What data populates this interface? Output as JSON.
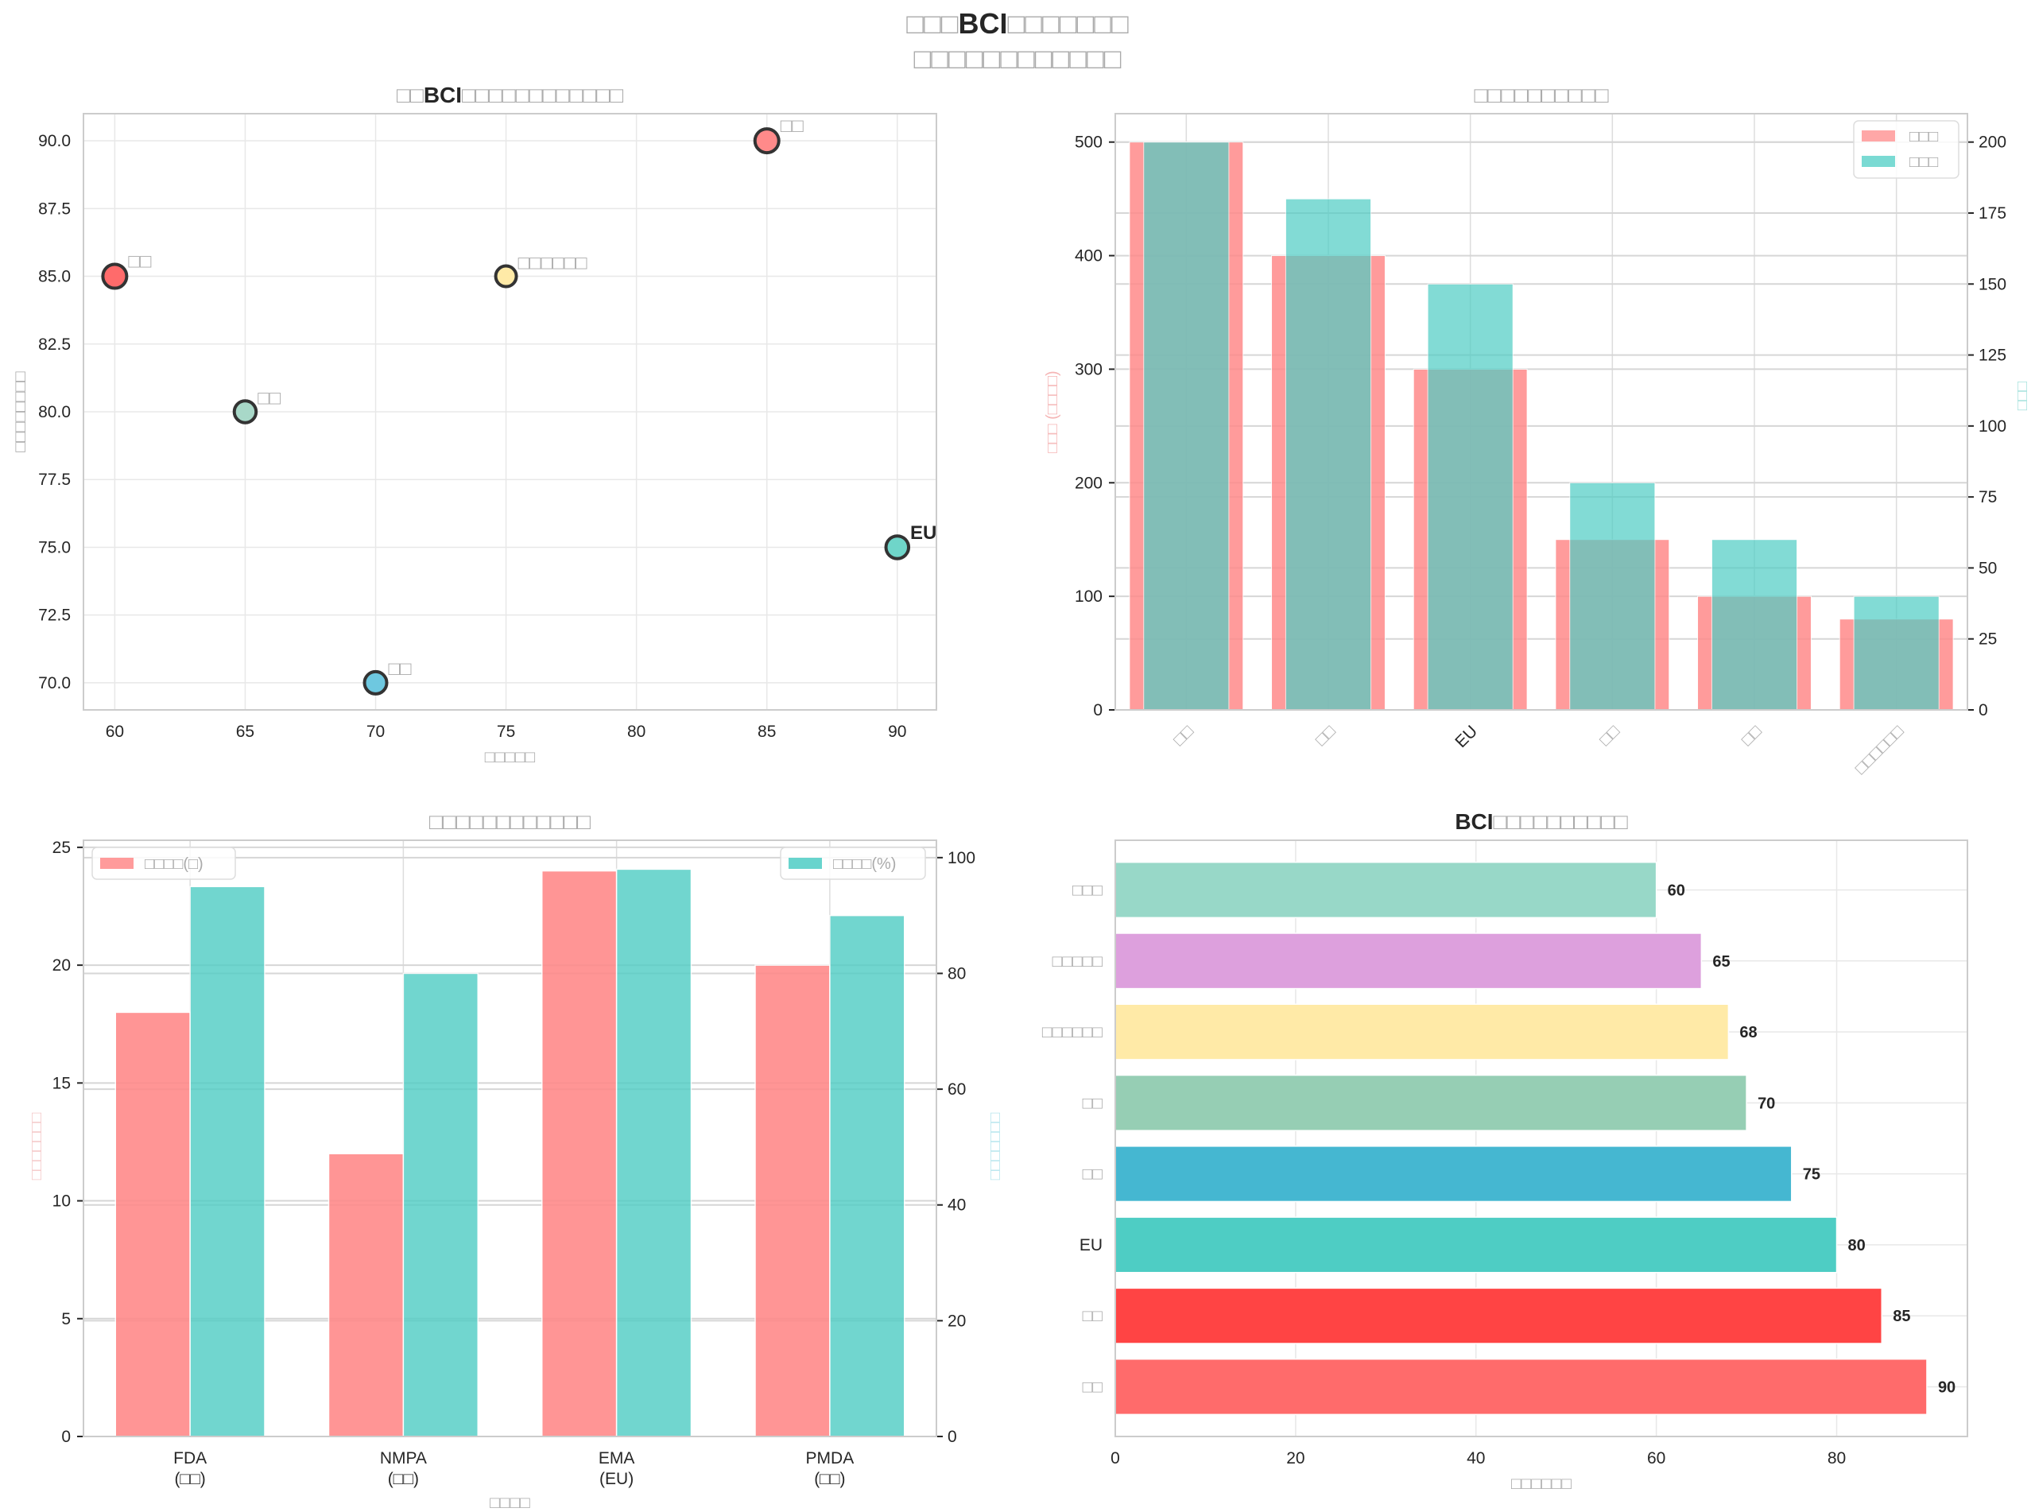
{
  "figure": {
    "suptitle_line1_prefix": "□□□",
    "suptitle_line1_bold": "BCI",
    "suptitle_line1_suffix": "□□□□□□□",
    "suptitle_line2": "□□□□□□□□□□□□"
  },
  "chart_data": [
    {
      "id": "scatter",
      "type": "scatter",
      "title_prefix": "□□",
      "title_bold": "BCI",
      "title_suffix": "□□□□□□□□□□□□",
      "xlabel": "□□□□□",
      "ylabel": "□□□□□□□□",
      "xlim": [
        58.8,
        91.5
      ],
      "ylim": [
        69.0,
        91.0
      ],
      "xticks": [
        60,
        65,
        70,
        75,
        80,
        85,
        90
      ],
      "yticks": [
        "70.0",
        "72.5",
        "75.0",
        "77.5",
        "80.0",
        "82.5",
        "85.0",
        "87.5",
        "90.0"
      ],
      "grid": true,
      "points": [
        {
          "label": "□□",
          "x": 60,
          "y": 85,
          "size": 1,
          "color": "#ff6b6b"
        },
        {
          "label": "□□",
          "x": 65,
          "y": 80,
          "size": 0.75,
          "color": "#a8d8c8"
        },
        {
          "label": "□□",
          "x": 70,
          "y": 70,
          "size": 0.8,
          "color": "#6ec8e0"
        },
        {
          "label": "□□□□□□",
          "x": 75,
          "y": 85,
          "size": 0.6,
          "color": "#ffeaa7"
        },
        {
          "label": "□□",
          "x": 85,
          "y": 90,
          "size": 1,
          "color": "#ff8a8a"
        },
        {
          "label": "EU",
          "x": 90,
          "y": 75,
          "size": 0.85,
          "color": "#6fd5c9"
        }
      ]
    },
    {
      "id": "dual-bar",
      "type": "bar",
      "title": "□□□□□□□□□□",
      "categories": [
        "□□",
        "□□",
        "EU",
        "□□",
        "□□",
        "□□□□□□"
      ],
      "ylabel_left": "□□□ (□□□□)",
      "ylabel_right": "□□□",
      "ylim_left": [
        0,
        525
      ],
      "ylim_right": [
        0,
        210
      ],
      "yticks_left": [
        0,
        100,
        200,
        300,
        400,
        500
      ],
      "yticks_right": [
        0,
        25,
        50,
        75,
        100,
        125,
        150,
        175,
        200
      ],
      "legend_position": "upper-right",
      "series": [
        {
          "name": "□□□",
          "axis": "left",
          "color": "#ff8a8a",
          "values": [
            500,
            400,
            300,
            150,
            100,
            80
          ]
        },
        {
          "name": "□□□",
          "axis": "right",
          "color": "#4ecdc4",
          "values": [
            200,
            180,
            150,
            80,
            60,
            40
          ]
        }
      ]
    },
    {
      "id": "grouped-bar",
      "type": "bar",
      "title": "□□□□□□□□□□□□",
      "categories": [
        "FDA\n(□□)",
        "NMPA\n(□□)",
        "EMA\n(EU)",
        "PMDA\n(□□)"
      ],
      "xlabel": "□□□□",
      "ylabel_left": "□□□□□□□",
      "ylabel_right": "□□□□□□□",
      "ylim_left": [
        0,
        25.3
      ],
      "ylim_right": [
        0,
        103
      ],
      "yticks_left": [
        0,
        5,
        10,
        15,
        20,
        25
      ],
      "yticks_right": [
        0,
        20,
        40,
        60,
        80,
        100
      ],
      "series": [
        {
          "name": "□□□□(□)",
          "axis": "left",
          "color": "#ff8a8a",
          "legend_position": "upper-left",
          "values": [
            18,
            12,
            24,
            20
          ]
        },
        {
          "name": "□□□□(%)",
          "axis": "right",
          "color": "#4ecdc4",
          "legend_position": "upper-right",
          "values": [
            95,
            80,
            98,
            90
          ]
        }
      ]
    },
    {
      "id": "hbar",
      "type": "bar",
      "orientation": "horizontal",
      "title_bold": "BCI",
      "title_suffix": "□□□□□□□□□□",
      "xlabel": "□□□□□□",
      "xlim": [
        0,
        94.5
      ],
      "xticks": [
        0,
        20,
        40,
        60,
        80
      ],
      "categories": [
        "□□",
        "□□",
        "EU",
        "□□",
        "□□",
        "□□□□□□",
        "□□□□□",
        "□□□"
      ],
      "values": [
        90,
        85,
        80,
        75,
        70,
        68,
        65,
        60
      ],
      "colors": [
        "#ff6b6b",
        "#ff4444",
        "#4ecdc4",
        "#45b7d1",
        "#96ceb4",
        "#ffeaa7",
        "#dda0dd",
        "#98d8c8"
      ]
    }
  ]
}
